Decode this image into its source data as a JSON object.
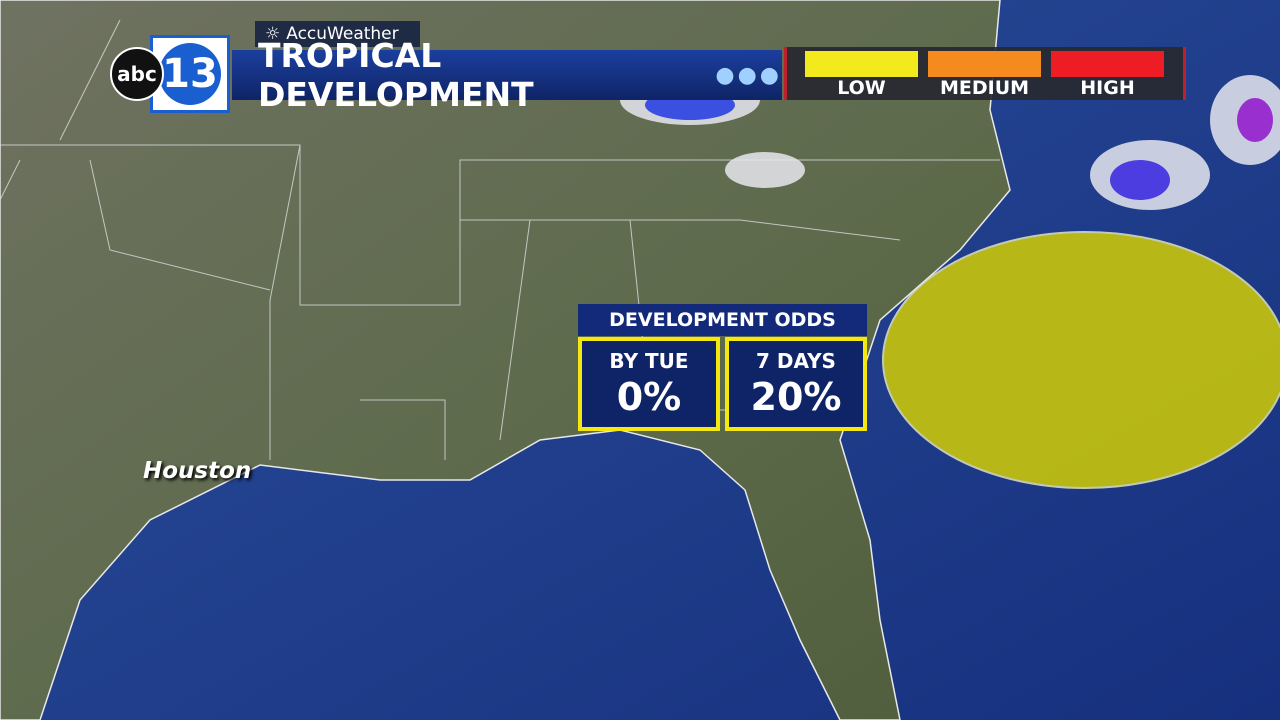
{
  "logo": {
    "network": "abc",
    "channel": "13"
  },
  "header": {
    "brand": "AccuWeather",
    "title": "TROPICAL DEVELOPMENT"
  },
  "legend": [
    {
      "label": "LOW",
      "color": "#f2ea1c"
    },
    {
      "label": "MEDIUM",
      "color": "#f58a1f"
    },
    {
      "label": "HIGH",
      "color": "#ee1c24"
    }
  ],
  "odds": {
    "title": "DEVELOPMENT ODDS",
    "cells": [
      {
        "label": "BY  TUE",
        "value": "0%"
      },
      {
        "label": "7 DAYS",
        "value": "20%"
      }
    ]
  },
  "map": {
    "city": "Houston"
  }
}
